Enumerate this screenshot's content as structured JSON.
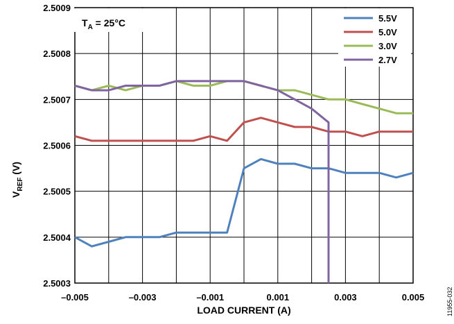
{
  "chart_data": {
    "type": "line",
    "xlabel": "LOAD CURRENT (A)",
    "ylabel_main": "V",
    "ylabel_sub": "REF",
    "ylabel_unit": " (V)",
    "xlim": [
      -0.005,
      0.005
    ],
    "ylim": [
      2.5003,
      2.5009
    ],
    "x_ticks": [
      -0.005,
      -0.003,
      -0.001,
      0.001,
      0.003,
      0.005
    ],
    "x_tick_labels": [
      "–0.005",
      "–0.003",
      "–0.001",
      "0.001",
      "0.003",
      "0.005"
    ],
    "x_grid": [
      -0.005,
      -0.004,
      -0.003,
      -0.002,
      -0.001,
      0,
      0.001,
      0.002,
      0.003,
      0.004,
      0.005
    ],
    "y_ticks": [
      2.5003,
      2.5004,
      2.5005,
      2.5006,
      2.5007,
      2.5008,
      2.5009
    ],
    "y_tick_labels": [
      "2.5003",
      "2.5004",
      "2.5005",
      "2.5006",
      "2.5007",
      "2.5008",
      "2.5009"
    ],
    "grid": true,
    "legend_position": "top-right",
    "annotation": {
      "main": "T",
      "sub": "A",
      "rest": " = 25°C"
    },
    "figure_id": "11955-032",
    "series": [
      {
        "name": "5.5V",
        "color": "#4f81bd",
        "x": [
          -0.005,
          -0.0045,
          -0.004,
          -0.0035,
          -0.003,
          -0.0025,
          -0.002,
          -0.0015,
          -0.001,
          -0.0005,
          0,
          0.0005,
          0.001,
          0.0015,
          0.002,
          0.0025,
          0.003,
          0.0035,
          0.004,
          0.0045,
          0.005
        ],
        "values": [
          2.5004,
          2.50038,
          2.50039,
          2.5004,
          2.5004,
          2.5004,
          2.50041,
          2.50041,
          2.50041,
          2.50041,
          2.50055,
          2.50057,
          2.50056,
          2.50056,
          2.50055,
          2.50055,
          2.50054,
          2.50054,
          2.50054,
          2.50053,
          2.50054
        ]
      },
      {
        "name": "5.0V",
        "color": "#c0504d",
        "x": [
          -0.005,
          -0.0045,
          -0.004,
          -0.0035,
          -0.003,
          -0.0025,
          -0.002,
          -0.0015,
          -0.001,
          -0.0005,
          0,
          0.0005,
          0.001,
          0.0015,
          0.002,
          0.0025,
          0.003,
          0.0035,
          0.004,
          0.0045,
          0.005
        ],
        "values": [
          2.50062,
          2.50061,
          2.50061,
          2.50061,
          2.50061,
          2.50061,
          2.50061,
          2.50061,
          2.50062,
          2.50061,
          2.50065,
          2.50066,
          2.50065,
          2.50064,
          2.50064,
          2.50063,
          2.50063,
          2.50062,
          2.50063,
          2.50063,
          2.50063
        ]
      },
      {
        "name": "3.0V",
        "color": "#9bbb59",
        "x": [
          -0.005,
          -0.0045,
          -0.004,
          -0.0035,
          -0.003,
          -0.0025,
          -0.002,
          -0.0015,
          -0.001,
          -0.0005,
          0,
          0.0005,
          0.001,
          0.0015,
          0.002,
          0.0025,
          0.003,
          0.0035,
          0.004,
          0.0045,
          0.005
        ],
        "values": [
          2.50073,
          2.50072,
          2.50073,
          2.50072,
          2.50073,
          2.50073,
          2.50074,
          2.50073,
          2.50073,
          2.50074,
          2.50074,
          2.50073,
          2.50072,
          2.50072,
          2.50071,
          2.5007,
          2.5007,
          2.50069,
          2.50068,
          2.50067,
          2.50067
        ]
      },
      {
        "name": "2.7V",
        "color": "#8064a2",
        "x": [
          -0.005,
          -0.0045,
          -0.004,
          -0.0035,
          -0.003,
          -0.0025,
          -0.002,
          -0.0015,
          -0.001,
          -0.0005,
          0,
          0.0005,
          0.001,
          0.0015,
          0.002,
          0.0025,
          0.0025
        ],
        "values": [
          2.50073,
          2.50072,
          2.50072,
          2.50073,
          2.50073,
          2.50073,
          2.50074,
          2.50074,
          2.50074,
          2.50074,
          2.50074,
          2.50073,
          2.50072,
          2.5007,
          2.50068,
          2.50065,
          2.5003
        ]
      }
    ]
  }
}
